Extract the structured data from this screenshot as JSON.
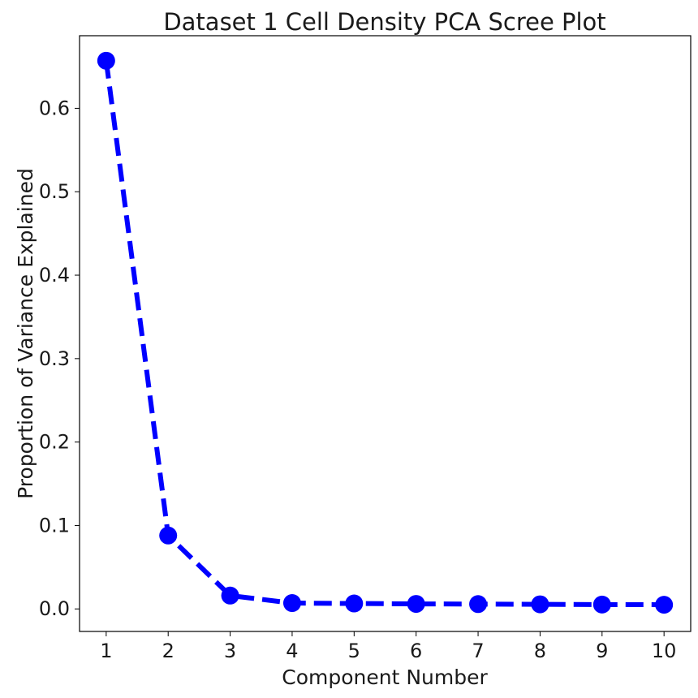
{
  "chart_data": {
    "type": "line",
    "title": "Dataset 1 Cell Density PCA Scree Plot",
    "xlabel": "Component Number",
    "ylabel": "Proportion of Variance Explained",
    "x": [
      1,
      2,
      3,
      4,
      5,
      6,
      7,
      8,
      9,
      10
    ],
    "series": [
      {
        "values": [
          0.657,
          0.088,
          0.016,
          0.007,
          0.0065,
          0.006,
          0.0058,
          0.0055,
          0.0052,
          0.005
        ]
      }
    ],
    "xlim": [
      0.57,
      10.43
    ],
    "ylim": [
      -0.027,
      0.687
    ],
    "xticks": [
      1,
      2,
      3,
      4,
      5,
      6,
      7,
      8,
      9,
      10
    ],
    "xtick_labels": [
      "1",
      "2",
      "3",
      "4",
      "5",
      "6",
      "7",
      "8",
      "9",
      "10"
    ],
    "yticks": [
      0.0,
      0.1,
      0.2,
      0.3,
      0.4,
      0.5,
      0.6
    ],
    "ytick_labels": [
      "0.0",
      "0.1",
      "0.2",
      "0.3",
      "0.4",
      "0.5",
      "0.6"
    ],
    "grid": false,
    "line_style": "dashed",
    "marker": "circle",
    "color": "#0000ff"
  }
}
